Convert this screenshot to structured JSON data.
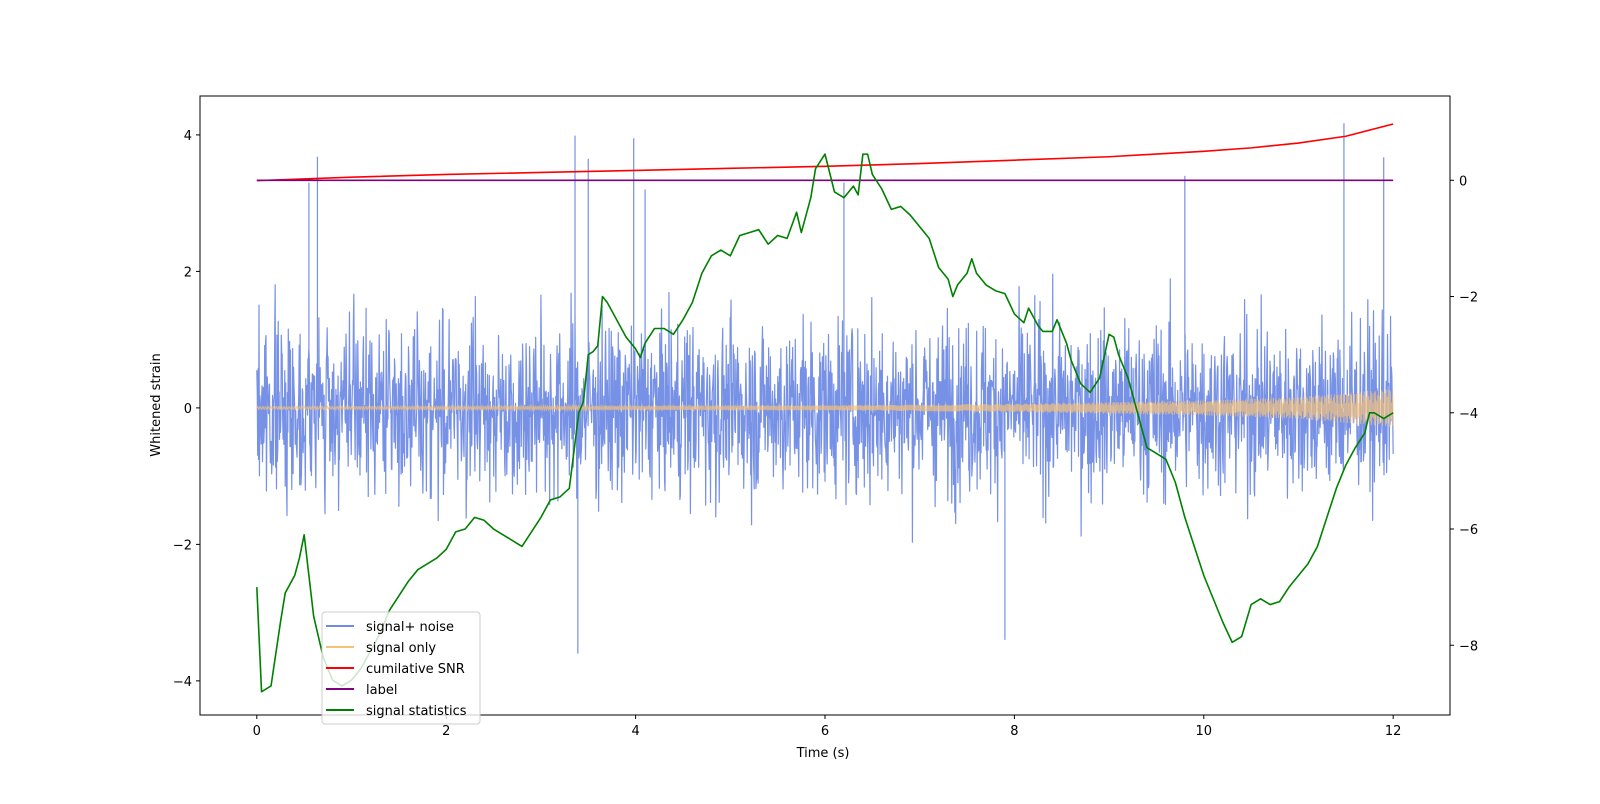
{
  "chart_data": {
    "type": "line",
    "xlabel": "Time (s)",
    "ylabel": "Whitened strain",
    "xlim": [
      -0.6,
      12.6
    ],
    "ylim": [
      -4.5,
      4.57
    ],
    "y2lim": [
      -9.2,
      1.45
    ],
    "xticks": [
      "0",
      "2",
      "4",
      "6",
      "8",
      "10",
      "12"
    ],
    "yticks": [
      "−4",
      "−2",
      "0",
      "2",
      "4"
    ],
    "y2ticks": [
      "−8",
      "−6",
      "−4",
      "−2",
      "0"
    ],
    "legend_position": "lower-left",
    "noise_spikes": [
      {
        "x": 0.55,
        "y": 3.3
      },
      {
        "x": 0.64,
        "y": 3.68
      },
      {
        "x": 3.36,
        "y": 3.99
      },
      {
        "x": 3.39,
        "y": -3.6
      },
      {
        "x": 3.5,
        "y": 3.65
      },
      {
        "x": 3.98,
        "y": 3.95
      },
      {
        "x": 4.1,
        "y": 3.2
      },
      {
        "x": 6.2,
        "y": 3.3
      },
      {
        "x": 7.9,
        "y": -3.4
      },
      {
        "x": 11.48,
        "y": 4.17
      },
      {
        "x": 11.9,
        "y": 3.67
      },
      {
        "x": 9.8,
        "y": 3.4
      }
    ],
    "series": [
      {
        "name": "signal+ noise",
        "axis": "left",
        "color": "#6f8be5",
        "style": "noise-band",
        "range": [
          0,
          12
        ],
        "envelope": [
          [
            0,
            1.7
          ],
          [
            12,
            1.7
          ]
        ]
      },
      {
        "name": "signal only",
        "axis": "left",
        "color": "#f5c27a",
        "style": "chirp",
        "range": [
          0,
          12
        ],
        "envelope": [
          [
            0,
            0.02
          ],
          [
            6,
            0.035
          ],
          [
            8,
            0.06
          ],
          [
            10,
            0.11
          ],
          [
            11,
            0.16
          ],
          [
            12,
            0.28
          ]
        ]
      },
      {
        "name": "cumilative SNR",
        "axis": "left",
        "color": "#ff0000",
        "points": [
          [
            0,
            3.33
          ],
          [
            1,
            3.38
          ],
          [
            2,
            3.42
          ],
          [
            3,
            3.45
          ],
          [
            4,
            3.48
          ],
          [
            5,
            3.51
          ],
          [
            6,
            3.54
          ],
          [
            7,
            3.58
          ],
          [
            8,
            3.63
          ],
          [
            9,
            3.68
          ],
          [
            10,
            3.76
          ],
          [
            10.5,
            3.81
          ],
          [
            11,
            3.88
          ],
          [
            11.5,
            3.98
          ],
          [
            12,
            4.16
          ]
        ]
      },
      {
        "name": "label",
        "axis": "right",
        "color": "#800080",
        "points": [
          [
            0,
            0
          ],
          [
            12,
            0
          ]
        ]
      },
      {
        "name": "signal statistics",
        "axis": "right",
        "color": "#008000",
        "points": [
          [
            0,
            -7.0
          ],
          [
            0.05,
            -8.8
          ],
          [
            0.15,
            -8.7
          ],
          [
            0.25,
            -7.6
          ],
          [
            0.3,
            -7.1
          ],
          [
            0.4,
            -6.8
          ],
          [
            0.45,
            -6.5
          ],
          [
            0.5,
            -6.1
          ],
          [
            0.55,
            -6.8
          ],
          [
            0.6,
            -7.5
          ],
          [
            0.7,
            -8.2
          ],
          [
            0.8,
            -8.6
          ],
          [
            0.9,
            -8.7
          ],
          [
            1.0,
            -8.6
          ],
          [
            1.1,
            -8.4
          ],
          [
            1.2,
            -8.1
          ],
          [
            1.3,
            -7.8
          ],
          [
            1.4,
            -7.4
          ],
          [
            1.6,
            -6.9
          ],
          [
            1.7,
            -6.7
          ],
          [
            1.9,
            -6.5
          ],
          [
            2.0,
            -6.35
          ],
          [
            2.1,
            -6.05
          ],
          [
            2.2,
            -6.0
          ],
          [
            2.3,
            -5.8
          ],
          [
            2.4,
            -5.85
          ],
          [
            2.5,
            -6.0
          ],
          [
            2.6,
            -6.1
          ],
          [
            2.8,
            -6.3
          ],
          [
            2.9,
            -6.05
          ],
          [
            3.0,
            -5.8
          ],
          [
            3.1,
            -5.5
          ],
          [
            3.2,
            -5.45
          ],
          [
            3.3,
            -5.3
          ],
          [
            3.4,
            -4.0
          ],
          [
            3.45,
            -3.8
          ],
          [
            3.5,
            -3.0
          ],
          [
            3.55,
            -2.95
          ],
          [
            3.6,
            -2.85
          ],
          [
            3.65,
            -2.0
          ],
          [
            3.7,
            -2.1
          ],
          [
            3.8,
            -2.4
          ],
          [
            3.9,
            -2.7
          ],
          [
            4.0,
            -2.9
          ],
          [
            4.05,
            -3.05
          ],
          [
            4.1,
            -2.8
          ],
          [
            4.2,
            -2.55
          ],
          [
            4.3,
            -2.55
          ],
          [
            4.4,
            -2.65
          ],
          [
            4.5,
            -2.4
          ],
          [
            4.6,
            -2.1
          ],
          [
            4.7,
            -1.6
          ],
          [
            4.8,
            -1.3
          ],
          [
            4.9,
            -1.2
          ],
          [
            5.0,
            -1.3
          ],
          [
            5.1,
            -0.95
          ],
          [
            5.2,
            -0.9
          ],
          [
            5.3,
            -0.85
          ],
          [
            5.4,
            -1.1
          ],
          [
            5.5,
            -0.95
          ],
          [
            5.6,
            -1.0
          ],
          [
            5.7,
            -0.55
          ],
          [
            5.75,
            -0.9
          ],
          [
            5.85,
            -0.3
          ],
          [
            5.9,
            0.2
          ],
          [
            6.0,
            0.45
          ],
          [
            6.1,
            -0.2
          ],
          [
            6.2,
            -0.3
          ],
          [
            6.3,
            -0.1
          ],
          [
            6.35,
            -0.25
          ],
          [
            6.4,
            0.45
          ],
          [
            6.45,
            0.45
          ],
          [
            6.5,
            0.1
          ],
          [
            6.6,
            -0.15
          ],
          [
            6.7,
            -0.5
          ],
          [
            6.8,
            -0.45
          ],
          [
            6.9,
            -0.6
          ],
          [
            7.0,
            -0.8
          ],
          [
            7.1,
            -1.0
          ],
          [
            7.2,
            -1.5
          ],
          [
            7.3,
            -1.7
          ],
          [
            7.35,
            -2.0
          ],
          [
            7.4,
            -1.8
          ],
          [
            7.5,
            -1.6
          ],
          [
            7.55,
            -1.35
          ],
          [
            7.6,
            -1.6
          ],
          [
            7.7,
            -1.8
          ],
          [
            7.8,
            -1.9
          ],
          [
            7.9,
            -1.95
          ],
          [
            8.0,
            -2.3
          ],
          [
            8.1,
            -2.45
          ],
          [
            8.15,
            -2.2
          ],
          [
            8.25,
            -2.5
          ],
          [
            8.3,
            -2.6
          ],
          [
            8.4,
            -2.6
          ],
          [
            8.45,
            -2.4
          ],
          [
            8.5,
            -2.6
          ],
          [
            8.55,
            -2.8
          ],
          [
            8.6,
            -3.1
          ],
          [
            8.7,
            -3.5
          ],
          [
            8.8,
            -3.65
          ],
          [
            8.9,
            -3.4
          ],
          [
            9.0,
            -2.65
          ],
          [
            9.05,
            -2.7
          ],
          [
            9.1,
            -3.0
          ],
          [
            9.2,
            -3.4
          ],
          [
            9.3,
            -4.0
          ],
          [
            9.4,
            -4.6
          ],
          [
            9.5,
            -4.7
          ],
          [
            9.6,
            -4.8
          ],
          [
            9.7,
            -5.2
          ],
          [
            9.8,
            -5.8
          ],
          [
            9.9,
            -6.3
          ],
          [
            10.0,
            -6.8
          ],
          [
            10.1,
            -7.2
          ],
          [
            10.2,
            -7.6
          ],
          [
            10.3,
            -7.95
          ],
          [
            10.4,
            -7.85
          ],
          [
            10.5,
            -7.3
          ],
          [
            10.6,
            -7.2
          ],
          [
            10.7,
            -7.3
          ],
          [
            10.8,
            -7.25
          ],
          [
            10.9,
            -7.0
          ],
          [
            11.0,
            -6.8
          ],
          [
            11.1,
            -6.6
          ],
          [
            11.2,
            -6.3
          ],
          [
            11.3,
            -5.8
          ],
          [
            11.4,
            -5.3
          ],
          [
            11.5,
            -4.9
          ],
          [
            11.6,
            -4.6
          ],
          [
            11.7,
            -4.35
          ],
          [
            11.75,
            -4.0
          ],
          [
            11.8,
            -4.0
          ],
          [
            11.9,
            -4.1
          ],
          [
            12.0,
            -4.0
          ]
        ]
      }
    ]
  }
}
